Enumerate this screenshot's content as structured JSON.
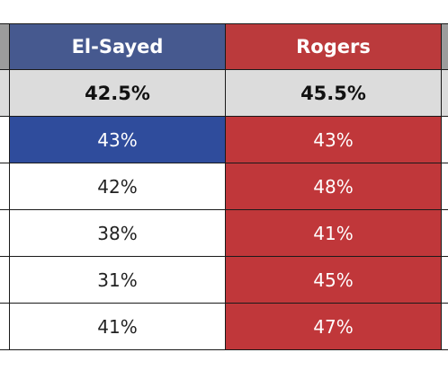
{
  "table": {
    "header": [
      "El-Sayed",
      "Rogers"
    ],
    "average": [
      "42.5%",
      "45.5%"
    ],
    "rows": [
      [
        "43%",
        "43%"
      ],
      [
        "42%",
        "48%"
      ],
      [
        "38%",
        "41%"
      ],
      [
        "31%",
        "45%"
      ],
      [
        "41%",
        "47%"
      ]
    ]
  }
}
